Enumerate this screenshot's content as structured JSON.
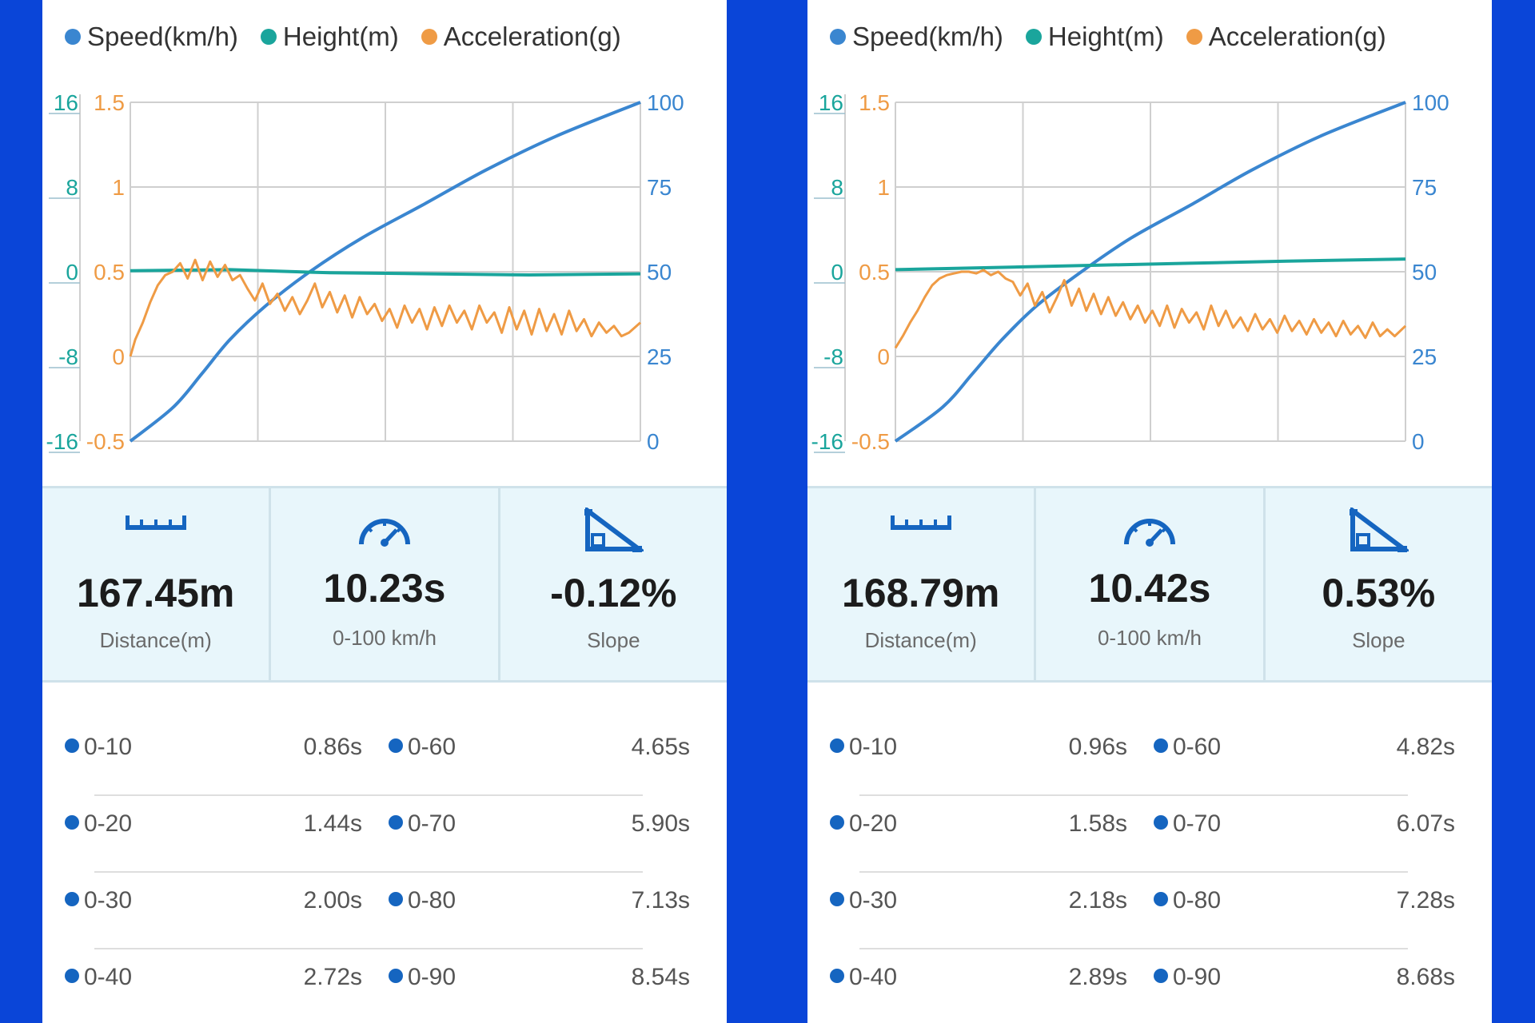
{
  "colors": {
    "speed": "#3a86d0",
    "height": "#1aa59c",
    "acceleration": "#ef9b45",
    "split_dot": "#1565c0",
    "grid": "#cfcfcf"
  },
  "legend": [
    {
      "label": "Speed(km/h)",
      "color": "#3a86d0"
    },
    {
      "label": "Height(m)",
      "color": "#1aa59c"
    },
    {
      "label": "Acceleration(g)",
      "color": "#ef9b45"
    }
  ],
  "panels": [
    {
      "stats": {
        "distance": {
          "value": "167.45m",
          "label": "Distance(m)",
          "icon": "ruler-icon"
        },
        "time": {
          "value": "10.23s",
          "label": "0-100 km/h",
          "icon": "speedometer-icon"
        },
        "slope": {
          "value": "-0.12%",
          "label": "Slope",
          "icon": "slope-icon"
        }
      },
      "splits": [
        {
          "a_label": "0-10",
          "a_value": "0.86s",
          "b_label": "0-60",
          "b_value": "4.65s"
        },
        {
          "a_label": "0-20",
          "a_value": "1.44s",
          "b_label": "0-70",
          "b_value": "5.90s"
        },
        {
          "a_label": "0-30",
          "a_value": "2.00s",
          "b_label": "0-80",
          "b_value": "7.13s"
        },
        {
          "a_label": "0-40",
          "a_value": "2.72s",
          "b_label": "0-90",
          "b_value": "8.54s"
        }
      ]
    },
    {
      "stats": {
        "distance": {
          "value": "168.79m",
          "label": "Distance(m)",
          "icon": "ruler-icon"
        },
        "time": {
          "value": "10.42s",
          "label": "0-100 km/h",
          "icon": "speedometer-icon"
        },
        "slope": {
          "value": "0.53%",
          "label": "Slope",
          "icon": "slope-icon"
        }
      },
      "splits": [
        {
          "a_label": "0-10",
          "a_value": "0.96s",
          "b_label": "0-60",
          "b_value": "4.82s"
        },
        {
          "a_label": "0-20",
          "a_value": "1.58s",
          "b_label": "0-70",
          "b_value": "6.07s"
        },
        {
          "a_label": "0-30",
          "a_value": "2.18s",
          "b_label": "0-80",
          "b_value": "7.28s"
        },
        {
          "a_label": "0-40",
          "a_value": "2.89s",
          "b_label": "0-90",
          "b_value": "8.68s"
        }
      ]
    }
  ],
  "chart_data": [
    {
      "type": "line",
      "title": "",
      "xlim": [
        0,
        10.23
      ],
      "grid": true,
      "legend_position": "top",
      "axes": {
        "height": {
          "ticks": [
            "16",
            "8",
            "0",
            "-8",
            "-16"
          ],
          "ylim": [
            -16,
            16
          ],
          "side": "left-outer"
        },
        "acceleration": {
          "ticks": [
            "1.5",
            "1",
            "0.5",
            "0",
            "-0.5"
          ],
          "ylim": [
            -0.5,
            1.5
          ],
          "side": "left-inner"
        },
        "speed": {
          "ticks": [
            "100",
            "75",
            "50",
            "25",
            "0"
          ],
          "ylim": [
            0,
            100
          ],
          "side": "right"
        }
      },
      "series": [
        {
          "name": "Speed(km/h)",
          "axis": "speed",
          "x": [
            0,
            0.86,
            1.44,
            2.0,
            2.72,
            3.6,
            4.65,
            5.9,
            7.13,
            8.54,
            10.23
          ],
          "y": [
            0,
            10,
            20,
            30,
            40,
            50,
            60,
            70,
            80,
            90,
            100
          ]
        },
        {
          "name": "Height(m)",
          "axis": "height",
          "x": [
            0,
            2,
            4,
            6,
            8,
            10.23
          ],
          "y": [
            0.1,
            0.2,
            -0.1,
            -0.2,
            -0.3,
            -0.2
          ]
        },
        {
          "name": "Acceleration(g)",
          "axis": "acceleration",
          "x": [
            0,
            0.1,
            0.25,
            0.4,
            0.55,
            0.7,
            0.85,
            1.0,
            1.15,
            1.3,
            1.45,
            1.6,
            1.75,
            1.9,
            2.05,
            2.2,
            2.35,
            2.5,
            2.65,
            2.8,
            2.95,
            3.1,
            3.25,
            3.4,
            3.55,
            3.7,
            3.85,
            4.0,
            4.15,
            4.3,
            4.45,
            4.6,
            4.75,
            4.9,
            5.05,
            5.2,
            5.35,
            5.5,
            5.65,
            5.8,
            5.95,
            6.1,
            6.25,
            6.4,
            6.55,
            6.7,
            6.85,
            7.0,
            7.15,
            7.3,
            7.45,
            7.6,
            7.75,
            7.9,
            8.05,
            8.2,
            8.35,
            8.5,
            8.65,
            8.8,
            8.95,
            9.1,
            9.25,
            9.4,
            9.55,
            9.7,
            9.85,
            10.0,
            10.23
          ],
          "y": [
            0.0,
            0.1,
            0.2,
            0.32,
            0.42,
            0.48,
            0.5,
            0.55,
            0.46,
            0.57,
            0.45,
            0.56,
            0.47,
            0.54,
            0.45,
            0.48,
            0.4,
            0.33,
            0.43,
            0.31,
            0.37,
            0.27,
            0.35,
            0.25,
            0.33,
            0.43,
            0.29,
            0.38,
            0.26,
            0.36,
            0.23,
            0.35,
            0.25,
            0.31,
            0.21,
            0.28,
            0.17,
            0.3,
            0.2,
            0.28,
            0.16,
            0.29,
            0.18,
            0.3,
            0.2,
            0.27,
            0.16,
            0.3,
            0.2,
            0.26,
            0.14,
            0.29,
            0.16,
            0.27,
            0.13,
            0.28,
            0.15,
            0.25,
            0.13,
            0.27,
            0.15,
            0.22,
            0.12,
            0.2,
            0.14,
            0.18,
            0.12,
            0.14,
            0.2
          ]
        }
      ]
    },
    {
      "type": "line",
      "title": "",
      "xlim": [
        0,
        10.42
      ],
      "grid": true,
      "legend_position": "top",
      "axes": {
        "height": {
          "ticks": [
            "16",
            "8",
            "0",
            "-8",
            "-16"
          ],
          "ylim": [
            -16,
            16
          ],
          "side": "left-outer"
        },
        "acceleration": {
          "ticks": [
            "1.5",
            "1",
            "0.5",
            "0",
            "-0.5"
          ],
          "ylim": [
            -0.5,
            1.5
          ],
          "side": "left-inner"
        },
        "speed": {
          "ticks": [
            "100",
            "75",
            "50",
            "25",
            "0"
          ],
          "ylim": [
            0,
            100
          ],
          "side": "right"
        }
      },
      "series": [
        {
          "name": "Speed(km/h)",
          "axis": "speed",
          "x": [
            0,
            0.96,
            1.58,
            2.18,
            2.89,
            3.8,
            4.82,
            6.07,
            7.28,
            8.68,
            10.42
          ],
          "y": [
            0,
            10,
            20,
            30,
            40,
            50,
            60,
            70,
            80,
            90,
            100
          ]
        },
        {
          "name": "Height(m)",
          "axis": "height",
          "x": [
            0,
            2,
            4,
            6,
            8,
            10.42
          ],
          "y": [
            0.2,
            0.4,
            0.6,
            0.8,
            1.0,
            1.2
          ]
        },
        {
          "name": "Acceleration(g)",
          "axis": "acceleration",
          "x": [
            0,
            0.15,
            0.3,
            0.45,
            0.6,
            0.75,
            0.9,
            1.05,
            1.2,
            1.35,
            1.5,
            1.65,
            1.8,
            1.95,
            2.1,
            2.25,
            2.4,
            2.55,
            2.7,
            2.85,
            3.0,
            3.15,
            3.3,
            3.45,
            3.6,
            3.75,
            3.9,
            4.05,
            4.2,
            4.35,
            4.5,
            4.65,
            4.8,
            4.95,
            5.1,
            5.25,
            5.4,
            5.55,
            5.7,
            5.85,
            6.0,
            6.15,
            6.3,
            6.45,
            6.6,
            6.75,
            6.9,
            7.05,
            7.2,
            7.35,
            7.5,
            7.65,
            7.8,
            7.95,
            8.1,
            8.25,
            8.4,
            8.55,
            8.7,
            8.85,
            9.0,
            9.15,
            9.3,
            9.45,
            9.6,
            9.75,
            9.9,
            10.05,
            10.2,
            10.42
          ],
          "y": [
            0.05,
            0.12,
            0.2,
            0.27,
            0.35,
            0.42,
            0.46,
            0.48,
            0.49,
            0.5,
            0.5,
            0.49,
            0.51,
            0.48,
            0.5,
            0.46,
            0.44,
            0.36,
            0.43,
            0.3,
            0.38,
            0.26,
            0.35,
            0.45,
            0.3,
            0.4,
            0.27,
            0.37,
            0.25,
            0.35,
            0.24,
            0.32,
            0.22,
            0.3,
            0.2,
            0.27,
            0.18,
            0.3,
            0.17,
            0.28,
            0.2,
            0.26,
            0.16,
            0.3,
            0.18,
            0.27,
            0.17,
            0.23,
            0.15,
            0.25,
            0.16,
            0.22,
            0.14,
            0.24,
            0.15,
            0.21,
            0.13,
            0.22,
            0.14,
            0.2,
            0.12,
            0.21,
            0.13,
            0.18,
            0.11,
            0.2,
            0.12,
            0.16,
            0.12,
            0.18
          ]
        }
      ]
    }
  ]
}
